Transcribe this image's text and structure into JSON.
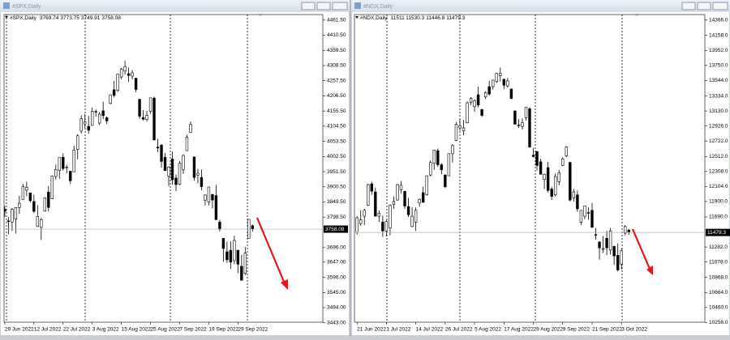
{
  "chart_data": [
    {
      "type": "candlestick",
      "title": "#SPX,Daily",
      "open": [
        3825,
        3786,
        3782,
        3792,
        3831,
        3858,
        3889,
        3880,
        3851,
        3767,
        3764,
        3819,
        3883,
        3860,
        3935,
        3955,
        4000,
        3966,
        3953,
        3951,
        4026,
        4088,
        4112,
        4104,
        4107,
        4154,
        4115,
        4156,
        4133,
        4181,
        4227,
        4225,
        4270,
        4290,
        4281,
        4273,
        4266,
        4195,
        4133,
        4127,
        4154,
        4199,
        4034,
        4041,
        4000,
        3937,
        3994,
        3930,
        3909,
        3959,
        4022,
        4084,
        4001,
        3940,
        3932,
        3855,
        3849,
        3875,
        3871,
        3782,
        3727,
        3682,
        3687,
        3652,
        3687,
        3633,
        3609,
        3727,
        3769.74
      ],
      "high": [
        3836,
        3799,
        3829,
        3832,
        3870,
        3910,
        3918,
        3880,
        3874,
        3839,
        3796,
        3864,
        3903,
        3939,
        3975,
        3999,
        4013,
        3975,
        3954,
        4039,
        4078,
        4141,
        4145,
        4140,
        4167,
        4161,
        4152,
        4187,
        4137,
        4211,
        4257,
        4280,
        4301,
        4325,
        4302,
        4293,
        4266,
        4196,
        4159,
        4156,
        4200,
        4204,
        4062,
        4044,
        4015,
        3970,
        4019,
        3942,
        3987,
        4010,
        4076,
        4120,
        4002,
        3961,
        3959,
        3875,
        3900,
        3876,
        3907,
        3790,
        3727,
        3716,
        3717,
        3736,
        3688,
        3672,
        3698,
        3791,
        3773.75
      ],
      "low": [
        3799,
        3741,
        3752,
        3743,
        3809,
        3858,
        3869,
        3847,
        3812,
        3765,
        3722,
        3817,
        3818,
        3860,
        3925,
        3927,
        3955,
        3946,
        3910,
        3951,
        3993,
        4080,
        4097,
        4079,
        4107,
        4136,
        4108,
        4128,
        4112,
        4178,
        4201,
        4219,
        4262,
        4278,
        4253,
        4262,
        4219,
        4129,
        4124,
        4120,
        4147,
        4057,
        4017,
        3965,
        3954,
        3903,
        3907,
        3886,
        3906,
        3944,
        4022,
        4084,
        3921,
        3912,
        3889,
        3838,
        3838,
        3828,
        3790,
        3750,
        3648,
        3644,
        3624,
        3640,
        3610,
        3585,
        3604,
        3727,
        3749.91
      ],
      "close": [
        3818,
        3785,
        3825,
        3831,
        3845,
        3902,
        3899,
        3854,
        3818,
        3801,
        3790,
        3863,
        3831,
        3937,
        3959,
        3999,
        3962,
        3967,
        3921,
        4024,
        4072,
        4130,
        4119,
        4091,
        4155,
        4152,
        4145,
        4140,
        4122,
        4210,
        4208,
        4280,
        4297,
        4305,
        4275,
        4284,
        4228,
        4138,
        4128,
        4141,
        4200,
        4058,
        4031,
        3986,
        3955,
        3967,
        3924,
        3908,
        3980,
        4006,
        4067,
        4110,
        3932,
        3946,
        3901,
        3873,
        3900,
        3856,
        3790,
        3758,
        3693,
        3655,
        3647,
        3720,
        3640,
        3586,
        3678,
        3791,
        3758.08
      ],
      "up_color": "#ffffff",
      "down_color": "#000000",
      "xlim": [
        -0.2,
        87.3
      ],
      "xticks": [
        {
          "value": 0,
          "label": "29 Jun 2022"
        },
        {
          "value": 8,
          "label": "12 Jul 2022"
        },
        {
          "value": 16,
          "label": "22 Jul 2022"
        },
        {
          "value": 24,
          "label": "3 Aug 2022"
        },
        {
          "value": 32,
          "label": "15 Aug 2022"
        },
        {
          "value": 40,
          "label": "25 Aug 2022"
        },
        {
          "value": 48,
          "label": "7 Sep 2022"
        },
        {
          "value": 56,
          "label": "19 Sep 2022"
        },
        {
          "value": 64,
          "label": "29 Sep 2022"
        }
      ],
      "ylim": [
        3445,
        4480
      ],
      "yticks": [
        {
          "value": 4461.5,
          "label": "4461.50"
        },
        {
          "value": 4410.5,
          "label": "4410.50"
        },
        {
          "value": 4359.5,
          "label": "4359.50"
        },
        {
          "value": 4308.5,
          "label": "4308.50"
        },
        {
          "value": 4257.5,
          "label": "4257.50"
        },
        {
          "value": 4206.5,
          "label": "4206.50"
        },
        {
          "value": 4155.5,
          "label": "4155.50"
        },
        {
          "value": 4104.5,
          "label": "4104.50"
        },
        {
          "value": 4053.5,
          "label": "4053.50"
        },
        {
          "value": 4002.5,
          "label": "4002.50"
        },
        {
          "value": 3951.5,
          "label": "3951.50"
        },
        {
          "value": 3900.5,
          "label": "3900.50"
        },
        {
          "value": 3849.5,
          "label": "3849.50"
        },
        {
          "value": 3798.5,
          "label": "3798.50"
        },
        {
          "value": 3696,
          "label": "3696.00"
        },
        {
          "value": 3647,
          "label": "3647.00"
        },
        {
          "value": 3596,
          "label": "3596.00"
        },
        {
          "value": 3545,
          "label": "3545.00"
        },
        {
          "value": 3494,
          "label": "3494.00"
        },
        {
          "value": 3443,
          "label": "3443.00"
        }
      ],
      "grid": false
    },
    {
      "type": "candlestick",
      "title": "#NDX,Daily",
      "open": [
        11480,
        11600,
        11700,
        11850,
        12140,
        12030,
        11700,
        11620,
        11500,
        11540,
        11860,
        11920,
        12060,
        12040,
        11830,
        11560,
        11620,
        11880,
        12020,
        11990,
        12260,
        12420,
        12590,
        12400,
        12260,
        12250,
        12550,
        12730,
        12900,
        12860,
        12970,
        13250,
        13190,
        13350,
        13150,
        13320,
        13460,
        13460,
        13530,
        13610,
        13560,
        13470,
        13430,
        13130,
        12940,
        12920,
        13040,
        13160,
        12530,
        12580,
        12440,
        12200,
        12360,
        12070,
        11990,
        12170,
        12390,
        12520,
        12430,
        11950,
        11990,
        11620,
        11700,
        11750,
        11780,
        11450,
        11350,
        11250,
        11400,
        11240,
        11290,
        11170,
        11050,
        11470,
        11511.0
      ],
      "high": [
        11700,
        11780,
        11800,
        12140,
        12170,
        12090,
        11780,
        11710,
        11650,
        11860,
        11970,
        12140,
        12180,
        12040,
        11950,
        11820,
        11820,
        11940,
        12100,
        12250,
        12460,
        12600,
        12620,
        12420,
        12270,
        12550,
        12680,
        12980,
        13020,
        13010,
        13260,
        13320,
        13290,
        13460,
        13160,
        13400,
        13540,
        13550,
        13650,
        13720,
        13570,
        13580,
        13430,
        13140,
        13020,
        13030,
        13180,
        13180,
        12630,
        12580,
        12480,
        12280,
        12440,
        12100,
        12280,
        12330,
        12500,
        12650,
        12440,
        12070,
        12050,
        11780,
        11840,
        11820,
        11880,
        11540,
        11360,
        11430,
        11500,
        11540,
        11300,
        11330,
        11260,
        11580,
        11530.3
      ],
      "low": [
        11450,
        11570,
        11580,
        11840,
        11990,
        11700,
        11620,
        11420,
        11430,
        11440,
        11800,
        11910,
        12010,
        11800,
        11690,
        11550,
        11500,
        11830,
        11880,
        11980,
        12240,
        12330,
        12370,
        12270,
        12080,
        12250,
        12430,
        12720,
        12860,
        12800,
        12960,
        13210,
        13120,
        13180,
        13050,
        13290,
        13340,
        13420,
        13510,
        13530,
        13430,
        13450,
        13290,
        12950,
        12900,
        12880,
        13000,
        12630,
        12500,
        12320,
        12270,
        12070,
        12020,
        11920,
        11970,
        12120,
        12380,
        12500,
        11900,
        11900,
        11760,
        11580,
        11660,
        11650,
        11540,
        11380,
        11110,
        11200,
        11170,
        11180,
        11040,
        10950,
        10980,
        11440,
        11446.8
      ],
      "close": [
        11680,
        11650,
        11780,
        12130,
        12040,
        11700,
        11740,
        11500,
        11630,
        11850,
        11900,
        12130,
        12120,
        11840,
        11720,
        11700,
        11780,
        11930,
        11890,
        12250,
        12430,
        12600,
        12400,
        12330,
        12100,
        12550,
        12660,
        12950,
        12930,
        12900,
        13240,
        13300,
        13270,
        13210,
        13070,
        13380,
        13360,
        13550,
        13640,
        13640,
        13480,
        13540,
        13300,
        12950,
        12930,
        12970,
        13180,
        12640,
        12510,
        12390,
        12270,
        12270,
        12050,
        11970,
        12240,
        12290,
        12480,
        12640,
        11920,
        12030,
        11800,
        11780,
        11840,
        11740,
        11550,
        11440,
        11270,
        11260,
        11270,
        11500,
        11160,
        10970,
        11230,
        11560,
        11479.3
      ],
      "up_color": "#ffffff",
      "down_color": "#000000",
      "xlim": [
        -0.7,
        94.7
      ],
      "xticks": [
        {
          "value": 0,
          "label": "21 Jun 2022"
        },
        {
          "value": 8,
          "label": "1 Jul 2022"
        },
        {
          "value": 16,
          "label": "14 Jul 2022"
        },
        {
          "value": 24,
          "label": "26 Jul 2022"
        },
        {
          "value": 32,
          "label": "5 Aug 2022"
        },
        {
          "value": 40,
          "label": "17 Aug 2022"
        },
        {
          "value": 48,
          "label": "29 Aug 2022"
        },
        {
          "value": 56,
          "label": "9 Sep 2022"
        },
        {
          "value": 64,
          "label": "21 Sep 2022"
        },
        {
          "value": 72,
          "label": "3 Oct 2022"
        }
      ],
      "ylim": [
        10260,
        14440
      ],
      "yticks": [
        {
          "value": 14366,
          "label": "14366.0"
        },
        {
          "value": 14158,
          "label": "14158.0"
        },
        {
          "value": 13952,
          "label": "13952.0"
        },
        {
          "value": 13750,
          "label": "13750.0"
        },
        {
          "value": 13544,
          "label": "13544.0"
        },
        {
          "value": 13334,
          "label": "13334.0"
        },
        {
          "value": 13130,
          "label": "13130.0"
        },
        {
          "value": 12926,
          "label": "12926.0"
        },
        {
          "value": 12722,
          "label": "12722.0"
        },
        {
          "value": 12512,
          "label": "12512.0"
        },
        {
          "value": 12308,
          "label": "12308.0"
        },
        {
          "value": 12104,
          "label": "12104.0"
        },
        {
          "value": 11900,
          "label": "11900.0"
        },
        {
          "value": 11690,
          "label": "11690.0"
        },
        {
          "value": 11282,
          "label": "11282.0"
        },
        {
          "value": 11078,
          "label": "11078.0"
        },
        {
          "value": 10868,
          "label": "10868.0"
        },
        {
          "value": 10664,
          "label": "10664.0"
        },
        {
          "value": 10460,
          "label": "10460.0"
        },
        {
          "value": 10256,
          "label": "10256.0"
        }
      ],
      "grid": false
    }
  ]
}
